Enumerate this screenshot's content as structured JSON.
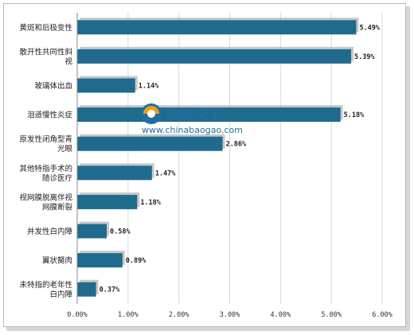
{
  "watermark": {
    "brand": "观研天下",
    "url": "www.chinabaogao.com"
  },
  "colors": {
    "bar": "#1f6b8e",
    "bar_shadow": "#9a9a9a",
    "grid": "#d9d9d9",
    "axis": "#888888"
  },
  "chart_data": {
    "type": "bar",
    "orientation": "horizontal",
    "categories": [
      [
        "黄斑和后极变性"
      ],
      [
        "散开性共同性斜",
        "视"
      ],
      [
        "玻璃体出血"
      ],
      [
        "泪道慢性炎症"
      ],
      [
        "原发性闭角型青",
        "光眼"
      ],
      [
        "其他特指手术的",
        "随诊医疗"
      ],
      [
        "视网膜脱离伴视",
        "网膜断裂"
      ],
      [
        "并发性白内障"
      ],
      [
        "翼状胬肉"
      ],
      [
        "未特指的老年性",
        "白内障"
      ]
    ],
    "values": [
      5.49,
      5.39,
      1.14,
      5.18,
      2.86,
      1.47,
      1.18,
      0.58,
      0.89,
      0.37
    ],
    "value_labels": [
      "5.49%",
      "5.39%",
      "1.14%",
      "5.18%",
      "2.86%",
      "1.47%",
      "1.18%",
      "0.58%",
      "0.89%",
      "0.37%"
    ],
    "xlim": [
      0,
      6
    ],
    "xticks": [
      "0.00%",
      "1.00%",
      "2.00%",
      "3.00%",
      "4.00%",
      "5.00%",
      "6.00%"
    ],
    "grid": true,
    "legend": "none"
  }
}
